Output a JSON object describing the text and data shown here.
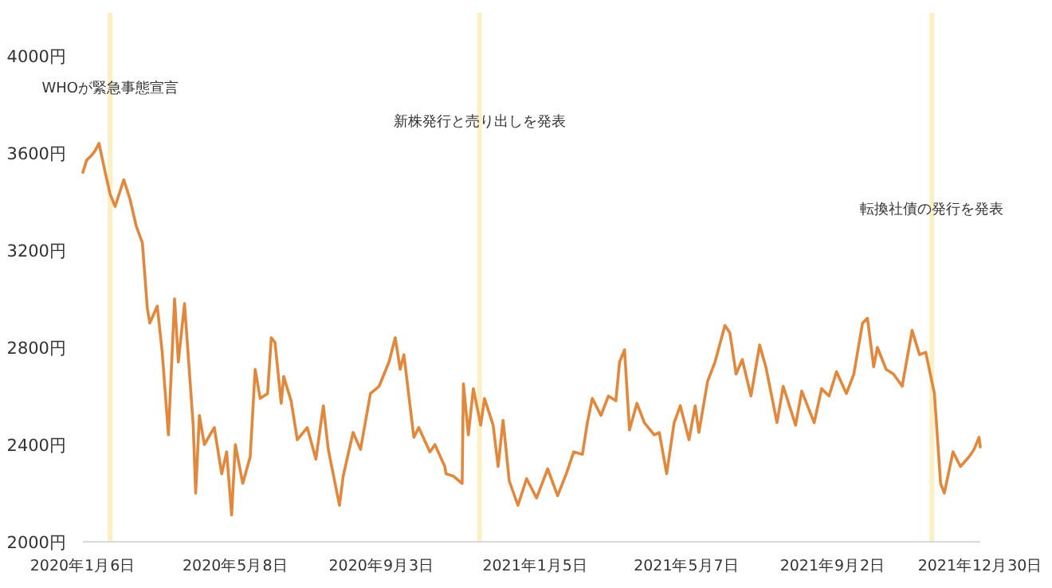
{
  "chart_data": {
    "type": "line",
    "x": [
      "2020-01-06",
      "2020-01-09",
      "2020-01-13",
      "2020-01-16",
      "2020-01-19",
      "2020-01-24",
      "2020-01-28",
      "2020-02-01",
      "2020-02-08",
      "2020-02-13",
      "2020-02-18",
      "2020-02-23",
      "2020-02-27",
      "2020-02-29",
      "2020-03-06",
      "2020-03-10",
      "2020-03-15",
      "2020-03-20",
      "2020-03-23",
      "2020-03-28",
      "2020-04-04",
      "2020-04-06",
      "2020-04-09",
      "2020-04-13",
      "2020-04-21",
      "2020-04-27",
      "2020-05-01",
      "2020-05-05",
      "2020-05-08",
      "2020-05-14",
      "2020-05-20",
      "2020-05-24",
      "2020-05-28",
      "2020-06-03",
      "2020-06-06",
      "2020-06-09",
      "2020-06-14",
      "2020-06-16",
      "2020-06-22",
      "2020-06-27",
      "2020-07-05",
      "2020-07-12",
      "2020-07-18",
      "2020-07-22",
      "2020-07-31",
      "2020-08-03",
      "2020-08-11",
      "2020-08-17",
      "2020-08-25",
      "2020-09-01",
      "2020-09-09",
      "2020-09-14",
      "2020-09-18",
      "2020-09-21",
      "2020-09-29",
      "2020-10-03",
      "2020-10-12",
      "2020-10-16",
      "2020-10-24",
      "2020-10-25",
      "2020-10-31",
      "2020-11-07",
      "2020-11-08",
      "2020-11-12",
      "2020-11-16",
      "2020-11-22",
      "2020-11-25",
      "2020-12-02",
      "2020-12-06",
      "2020-12-10",
      "2020-12-15",
      "2020-12-22",
      "2020-12-29",
      "2021-01-06",
      "2021-01-15",
      "2021-01-23",
      "2021-01-30",
      "2021-02-05",
      "2021-02-12",
      "2021-02-16",
      "2021-02-20",
      "2021-02-27",
      "2021-03-05",
      "2021-03-11",
      "2021-03-14",
      "2021-03-18",
      "2021-03-22",
      "2021-03-28",
      "2021-04-03",
      "2021-04-11",
      "2021-04-15",
      "2021-04-21",
      "2021-04-27",
      "2021-05-02",
      "2021-05-09",
      "2021-05-14",
      "2021-05-17",
      "2021-05-24",
      "2021-05-30",
      "2021-06-07",
      "2021-06-11",
      "2021-06-16",
      "2021-06-21",
      "2021-06-28",
      "2021-07-05",
      "2021-07-10",
      "2021-07-19",
      "2021-07-24",
      "2021-08-03",
      "2021-08-08",
      "2021-08-18",
      "2021-08-24",
      "2021-08-30",
      "2021-09-05",
      "2021-09-13",
      "2021-09-19",
      "2021-09-26",
      "2021-09-30",
      "2021-10-05",
      "2021-10-08",
      "2021-10-15",
      "2021-10-21",
      "2021-10-28",
      "2021-11-05",
      "2021-11-11",
      "2021-11-16",
      "2021-11-23",
      "2021-11-28",
      "2021-12-01",
      "2021-12-08",
      "2021-12-14",
      "2021-12-21",
      "2021-12-25",
      "2021-12-29",
      "2021-12-30"
    ],
    "series": [
      {
        "color": "#e2883c",
        "values": [
          3520,
          3570,
          3590,
          3610,
          3640,
          3520,
          3430,
          3380,
          3490,
          3410,
          3300,
          3230,
          2960,
          2900,
          2970,
          2780,
          2440,
          3000,
          2740,
          2980,
          2480,
          2200,
          2520,
          2400,
          2470,
          2280,
          2370,
          2110,
          2400,
          2240,
          2350,
          2710,
          2590,
          2610,
          2840,
          2820,
          2570,
          2680,
          2580,
          2420,
          2470,
          2340,
          2560,
          2380,
          2150,
          2270,
          2450,
          2380,
          2610,
          2640,
          2740,
          2840,
          2710,
          2770,
          2430,
          2470,
          2370,
          2400,
          2310,
          2280,
          2270,
          2240,
          2650,
          2440,
          2630,
          2480,
          2590,
          2480,
          2310,
          2500,
          2250,
          2150,
          2260,
          2180,
          2300,
          2190,
          2280,
          2370,
          2360,
          2490,
          2590,
          2520,
          2600,
          2580,
          2740,
          2790,
          2460,
          2570,
          2490,
          2440,
          2450,
          2280,
          2490,
          2560,
          2420,
          2560,
          2450,
          2660,
          2740,
          2890,
          2860,
          2690,
          2750,
          2600,
          2810,
          2720,
          2490,
          2640,
          2480,
          2620,
          2490,
          2630,
          2600,
          2700,
          2610,
          2690,
          2900,
          2920,
          2720,
          2800,
          2710,
          2690,
          2640,
          2870,
          2770,
          2780,
          2610,
          2240,
          2200,
          2370,
          2310,
          2350,
          2380,
          2430,
          2390
        ]
      }
    ],
    "xlim": [
      "2020-01-06",
      "2021-12-30"
    ],
    "xticks": [
      {
        "value": "2020-01-06",
        "label": "2020年1月6日"
      },
      {
        "value": "2020-05-08",
        "label": "2020年5月8日"
      },
      {
        "value": "2020-09-03",
        "label": "2020年9月3日"
      },
      {
        "value": "2021-01-05",
        "label": "2021年1月5日"
      },
      {
        "value": "2021-05-07",
        "label": "2021年5月7日"
      },
      {
        "value": "2021-09-02",
        "label": "2021年9月2日"
      },
      {
        "value": "2021-12-30",
        "label": "2021年12月30日"
      }
    ],
    "ylim": [
      2000,
      4000
    ],
    "yticks": [
      {
        "value": 2000,
        "label": "2000円"
      },
      {
        "value": 2400,
        "label": "2400円"
      },
      {
        "value": 2800,
        "label": "2800円"
      },
      {
        "value": 3200,
        "label": "3200円"
      },
      {
        "value": 3600,
        "label": "3600円"
      },
      {
        "value": 4000,
        "label": "4000円"
      }
    ],
    "ref_lines": [
      {
        "axis": "x",
        "value": "2020-01-28",
        "color": "#fbefc4"
      },
      {
        "axis": "x",
        "value": "2020-11-21",
        "color": "#fbefc4"
      },
      {
        "axis": "x",
        "value": "2021-11-21",
        "color": "#fbefc4"
      }
    ],
    "annotations": [
      {
        "text": "WHOが緊急事態宣言",
        "x": "2020-01-28",
        "y": 3870
      },
      {
        "text": "新株発行と売り出しを発表",
        "x": "2020-11-21",
        "y": 3730
      },
      {
        "text": "転換社債の発行を発表",
        "x": "2021-11-21",
        "y": 3370
      }
    ],
    "grid": false,
    "marker": "none",
    "line_style": "solid"
  }
}
